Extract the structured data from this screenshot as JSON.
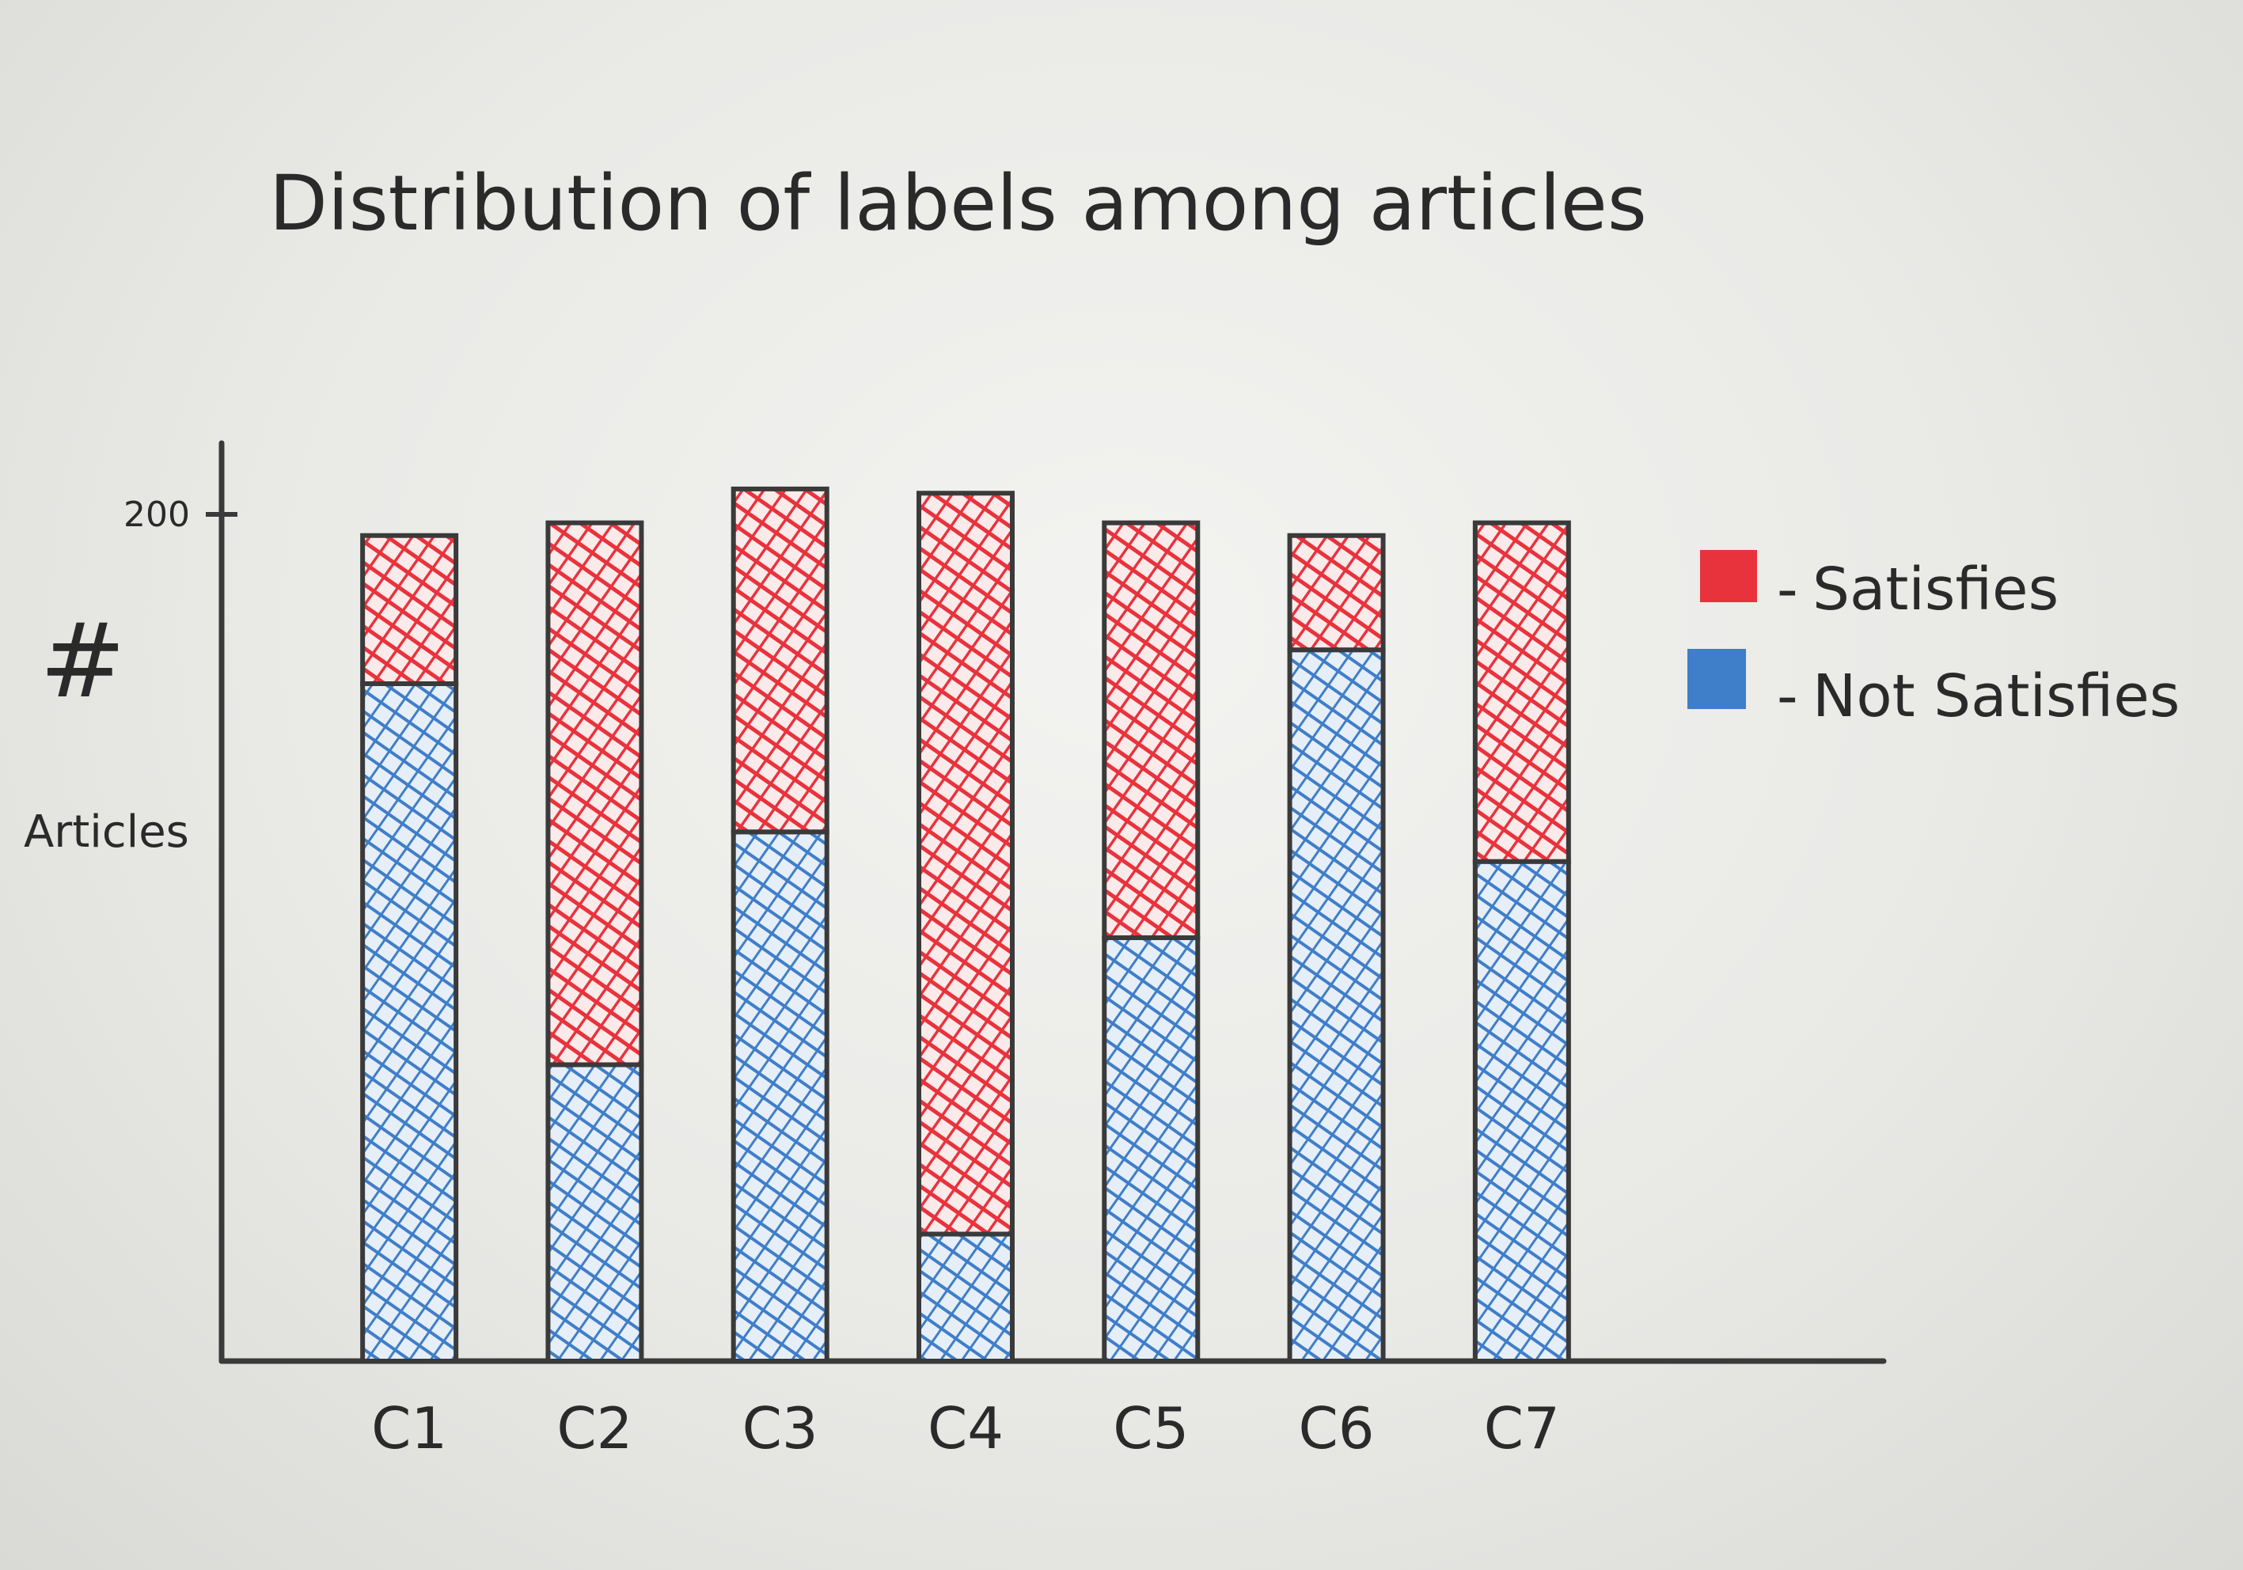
{
  "chart_data": {
    "type": "bar",
    "stacked": true,
    "title": "Distribution of labels among articles",
    "ylabel_symbol": "#",
    "ylabel": "Articles",
    "yticks": [
      200
    ],
    "ylim": [
      0,
      200
    ],
    "grid": false,
    "legend_position": "right",
    "categories": [
      "C1",
      "C2",
      "C3",
      "C4",
      "C5",
      "C6",
      "C7"
    ],
    "series": [
      {
        "name": "Not Satisfies",
        "color": "#3f7ec9",
        "values": [
          160,
          70,
          125,
          30,
          100,
          168,
          118
        ]
      },
      {
        "name": "Satisfies",
        "color": "#e8333d",
        "values": [
          35,
          128,
          81,
          175,
          98,
          27,
          80
        ]
      }
    ]
  },
  "legend": {
    "items": [
      {
        "dash": "-",
        "label": "Satisfies",
        "color": "#e8333d"
      },
      {
        "dash": "-",
        "label": "Not Satisfies",
        "color": "#3f7ec9"
      }
    ]
  }
}
